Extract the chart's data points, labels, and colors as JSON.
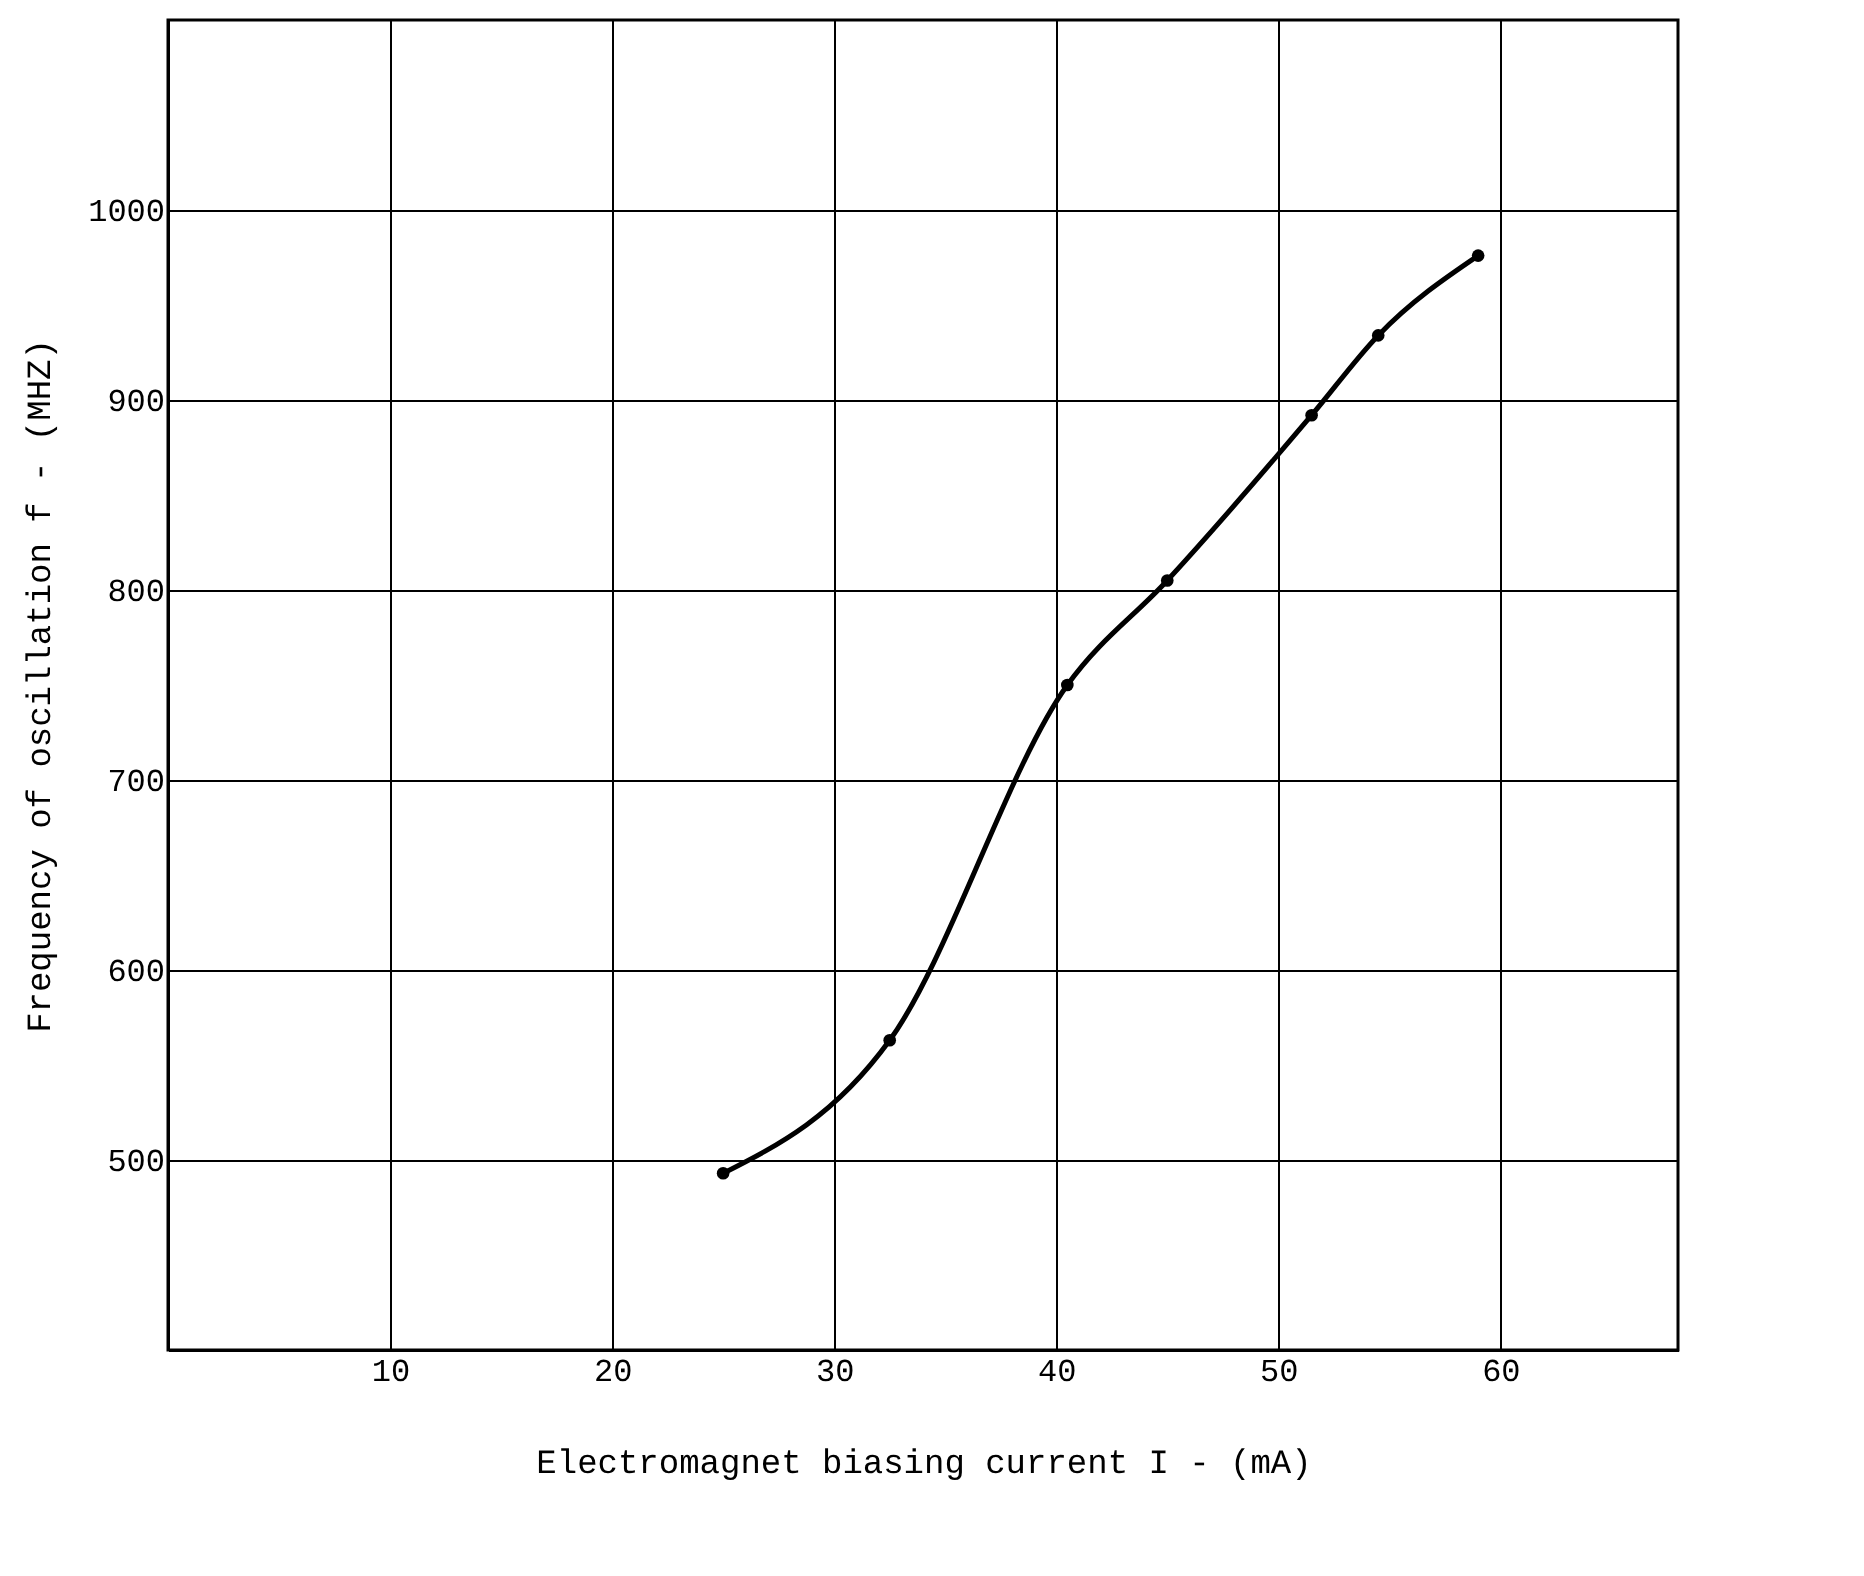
{
  "chart_data": {
    "type": "line",
    "xlabel": "Electromagnet biasing current I - (mA)",
    "ylabel": "Frequency of oscillation f - (MHZ)",
    "x": [
      25,
      32.5,
      40.5,
      45,
      51.5,
      54.5,
      59
    ],
    "series": [
      {
        "color": "#000000",
        "values": [
          493,
          563,
          750,
          805,
          892,
          934,
          976
        ]
      }
    ],
    "xlim": [
      0,
      68
    ],
    "ylim": [
      400,
      1100
    ],
    "xticks": [
      10,
      20,
      30,
      40,
      50,
      60
    ],
    "yticks": [
      500,
      600,
      700,
      800,
      900,
      1000
    ],
    "grid": true,
    "marker": "circle",
    "line_style": "solid"
  }
}
